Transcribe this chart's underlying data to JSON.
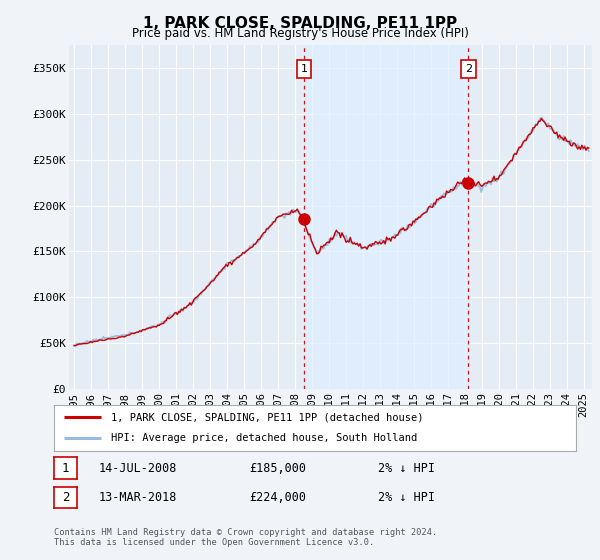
{
  "title": "1, PARK CLOSE, SPALDING, PE11 1PP",
  "subtitle": "Price paid vs. HM Land Registry's House Price Index (HPI)",
  "ylabel_ticks": [
    "£0",
    "£50K",
    "£100K",
    "£150K",
    "£200K",
    "£250K",
    "£300K",
    "£350K"
  ],
  "ytick_values": [
    0,
    50000,
    100000,
    150000,
    200000,
    250000,
    300000,
    350000
  ],
  "ylim": [
    0,
    375000
  ],
  "xlim_start": 1994.7,
  "xlim_end": 2025.5,
  "sale1_x": 2008.54,
  "sale1_y": 185000,
  "sale1_label": "1",
  "sale1_date": "14-JUL-2008",
  "sale1_price": "£185,000",
  "sale1_hpi": "2% ↓ HPI",
  "sale2_x": 2018.21,
  "sale2_y": 224000,
  "sale2_label": "2",
  "sale2_date": "13-MAR-2018",
  "sale2_price": "£224,000",
  "sale2_hpi": "2% ↓ HPI",
  "line_color_red": "#cc0000",
  "line_color_blue": "#99bbdd",
  "shade_color": "#ddeeff",
  "background_color": "#f0f4f8",
  "plot_bg_color": "#e4ecf5",
  "grid_color": "#ffffff",
  "legend_label_red": "1, PARK CLOSE, SPALDING, PE11 1PP (detached house)",
  "legend_label_blue": "HPI: Average price, detached house, South Holland",
  "footer": "Contains HM Land Registry data © Crown copyright and database right 2024.\nThis data is licensed under the Open Government Licence v3.0."
}
